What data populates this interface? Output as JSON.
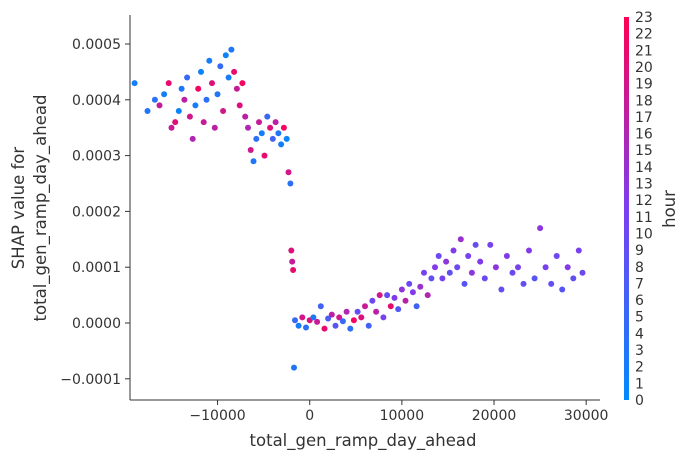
{
  "chart_data": {
    "type": "scatter",
    "xlabel": "total_gen_ramp_day_ahead",
    "ylabel_line1": "SHAP value for",
    "ylabel_line2": "total_gen_ramp_day_ahead",
    "xlim": [
      -19500,
      31500
    ],
    "ylim": [
      -0.000138,
      0.000552
    ],
    "x_ticks": [
      {
        "value": -10000,
        "label": "−10000"
      },
      {
        "value": 0,
        "label": "0"
      },
      {
        "value": 10000,
        "label": "10000"
      },
      {
        "value": 20000,
        "label": "20000"
      },
      {
        "value": 30000,
        "label": "30000"
      }
    ],
    "y_ticks": [
      {
        "value": -0.0001,
        "label": "−0.0001"
      },
      {
        "value": 0.0,
        "label": "0.0000"
      },
      {
        "value": 0.0001,
        "label": "0.0001"
      },
      {
        "value": 0.0002,
        "label": "0.0002"
      },
      {
        "value": 0.0003,
        "label": "0.0003"
      },
      {
        "value": 0.0004,
        "label": "0.0004"
      },
      {
        "value": 0.0005,
        "label": "0.0005"
      }
    ],
    "colorbar": {
      "label": "hour",
      "min": 0,
      "max": 23,
      "ticks": [
        "0",
        "1",
        "2",
        "3",
        "4",
        "5",
        "6",
        "7",
        "8",
        "9",
        "10",
        "11",
        "12",
        "13",
        "14",
        "15",
        "16",
        "17",
        "18",
        "19",
        "20",
        "21",
        "22",
        "23"
      ],
      "low_color": "#008afb",
      "mid_color": "#7c3ef0",
      "high_color": "#ff0052"
    },
    "points": [
      [
        -19000,
        0.00043,
        2
      ],
      [
        -17600,
        0.00038,
        3
      ],
      [
        -16800,
        0.0004,
        4
      ],
      [
        -16300,
        0.00039,
        18
      ],
      [
        -15800,
        0.00041,
        2
      ],
      [
        -15300,
        0.00043,
        21
      ],
      [
        -15000,
        0.00035,
        18
      ],
      [
        -14600,
        0.00036,
        20
      ],
      [
        -14200,
        0.00038,
        1
      ],
      [
        -13900,
        0.00042,
        3
      ],
      [
        -13600,
        0.0004,
        17
      ],
      [
        -13300,
        0.00044,
        5
      ],
      [
        -13000,
        0.00037,
        19
      ],
      [
        -12700,
        0.00033,
        16
      ],
      [
        -12400,
        0.00039,
        2
      ],
      [
        -12100,
        0.00042,
        22
      ],
      [
        -11800,
        0.00045,
        1
      ],
      [
        -11500,
        0.00036,
        18
      ],
      [
        -11200,
        0.0004,
        4
      ],
      [
        -10900,
        0.00047,
        2
      ],
      [
        -10600,
        0.00043,
        20
      ],
      [
        -10300,
        0.00035,
        17
      ],
      [
        -10000,
        0.00041,
        3
      ],
      [
        -9700,
        0.00046,
        5
      ],
      [
        -9400,
        0.00038,
        19
      ],
      [
        -9100,
        0.00048,
        1
      ],
      [
        -8800,
        0.00044,
        2
      ],
      [
        -8500,
        0.00049,
        3
      ],
      [
        -8200,
        0.00045,
        21
      ],
      [
        -7900,
        0.00042,
        18
      ],
      [
        -7600,
        0.00039,
        20
      ],
      [
        -7300,
        0.00043,
        22
      ],
      [
        -7000,
        0.00037,
        17
      ],
      [
        -6700,
        0.00035,
        16
      ],
      [
        -6400,
        0.00031,
        19
      ],
      [
        -6100,
        0.00029,
        3
      ],
      [
        -5800,
        0.00033,
        4
      ],
      [
        -5500,
        0.00036,
        18
      ],
      [
        -5200,
        0.00034,
        2
      ],
      [
        -4900,
        0.0003,
        21
      ],
      [
        -4600,
        0.00037,
        5
      ],
      [
        -4300,
        0.00035,
        20
      ],
      [
        -4000,
        0.00033,
        6
      ],
      [
        -3700,
        0.00036,
        17
      ],
      [
        -3400,
        0.00034,
        3
      ],
      [
        -3100,
        0.00032,
        2
      ],
      [
        -2800,
        0.00035,
        22
      ],
      [
        -2500,
        0.00033,
        1
      ],
      [
        -2300,
        0.00027,
        19
      ],
      [
        -2100,
        0.00025,
        4
      ],
      [
        -2000,
        0.00013,
        20
      ],
      [
        -1900,
        0.00011,
        18
      ],
      [
        -1800,
        9.5e-05,
        21
      ],
      [
        -1700,
        -8e-05,
        3
      ],
      [
        -1600,
        5e-06,
        5
      ],
      [
        -1200,
        -5e-06,
        2
      ],
      [
        -800,
        1e-05,
        19
      ],
      [
        -400,
        -8e-06,
        4
      ],
      [
        0,
        5e-06,
        20
      ],
      [
        400,
        1e-05,
        3
      ],
      [
        800,
        2e-06,
        18
      ],
      [
        1200,
        3e-05,
        6
      ],
      [
        1600,
        -1e-05,
        21
      ],
      [
        2000,
        8e-06,
        7
      ],
      [
        2400,
        1.5e-05,
        17
      ],
      [
        2800,
        -5e-06,
        8
      ],
      [
        3200,
        1e-05,
        19
      ],
      [
        3600,
        3e-06,
        5
      ],
      [
        4000,
        2e-05,
        16
      ],
      [
        4400,
        -1e-05,
        4
      ],
      [
        4800,
        5e-06,
        22
      ],
      [
        5200,
        2e-05,
        9
      ],
      [
        5600,
        1e-05,
        20
      ],
      [
        6000,
        3e-05,
        18
      ],
      [
        6400,
        -5e-06,
        6
      ],
      [
        6800,
        4e-05,
        10
      ],
      [
        7200,
        2e-05,
        17
      ],
      [
        7600,
        5e-05,
        19
      ],
      [
        8000,
        1e-05,
        11
      ],
      [
        8400,
        5e-05,
        9
      ],
      [
        8800,
        3e-05,
        21
      ],
      [
        9200,
        4.5e-05,
        12
      ],
      [
        9600,
        2.5e-05,
        8
      ],
      [
        10000,
        6e-05,
        13
      ],
      [
        10400,
        4e-05,
        17
      ],
      [
        10800,
        7e-05,
        10
      ],
      [
        11200,
        5.5e-05,
        12
      ],
      [
        11600,
        3e-05,
        6
      ],
      [
        12000,
        6.5e-05,
        14
      ],
      [
        12400,
        9e-05,
        11
      ],
      [
        12800,
        5e-05,
        16
      ],
      [
        13200,
        8e-05,
        9
      ],
      [
        13600,
        0.0001,
        12
      ],
      [
        14000,
        0.00012,
        10
      ],
      [
        14400,
        8e-05,
        11
      ],
      [
        14800,
        0.00011,
        13
      ],
      [
        15200,
        9e-05,
        9
      ],
      [
        15600,
        0.00013,
        12
      ],
      [
        16000,
        0.0001,
        10
      ],
      [
        16400,
        0.00015,
        14
      ],
      [
        16800,
        7e-05,
        8
      ],
      [
        17200,
        0.00012,
        11
      ],
      [
        17600,
        9e-05,
        13
      ],
      [
        18000,
        0.00014,
        9
      ],
      [
        18500,
        0.00011,
        12
      ],
      [
        19000,
        8e-05,
        10
      ],
      [
        19600,
        0.00014,
        11
      ],
      [
        20200,
        0.0001,
        13
      ],
      [
        20800,
        6e-05,
        9
      ],
      [
        21400,
        0.00012,
        12
      ],
      [
        22000,
        9e-05,
        10
      ],
      [
        22600,
        0.0001,
        11
      ],
      [
        23200,
        7e-05,
        9
      ],
      [
        23800,
        0.00013,
        12
      ],
      [
        24400,
        8e-05,
        8
      ],
      [
        25000,
        0.00017,
        13
      ],
      [
        25600,
        0.0001,
        11
      ],
      [
        26200,
        7e-05,
        9
      ],
      [
        26800,
        0.00012,
        10
      ],
      [
        27400,
        6e-05,
        8
      ],
      [
        28000,
        0.0001,
        12
      ],
      [
        28600,
        8e-05,
        9
      ],
      [
        29200,
        0.00013,
        11
      ],
      [
        29600,
        9e-05,
        10
      ]
    ]
  }
}
